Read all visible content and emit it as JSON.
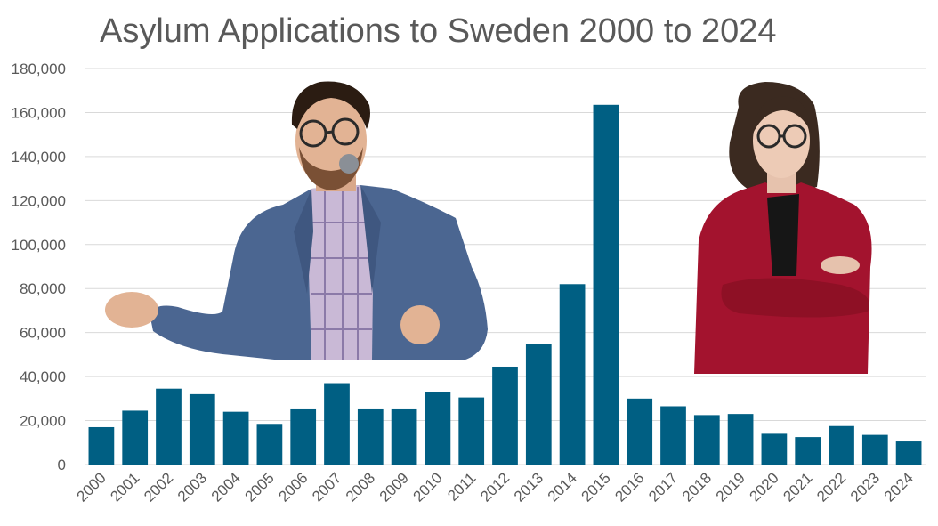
{
  "chart_data": {
    "type": "bar",
    "title": "Asylum Applications to Sweden 2000 to 2024",
    "xlabel": "",
    "ylabel": "",
    "ylim": [
      0,
      180000
    ],
    "yticks": [
      "0",
      "20,000",
      "40,000",
      "60,000",
      "80,000",
      "100,000",
      "120,000",
      "140,000",
      "160,000",
      "180,000"
    ],
    "ytick_values": [
      0,
      20000,
      40000,
      60000,
      80000,
      100000,
      120000,
      140000,
      160000,
      180000
    ],
    "grid": true,
    "legend": "none",
    "bar_color": "#005f83",
    "categories": [
      "2000",
      "2001",
      "2002",
      "2003",
      "2004",
      "2005",
      "2006",
      "2007",
      "2008",
      "2009",
      "2010",
      "2011",
      "2012",
      "2013",
      "2014",
      "2015",
      "2016",
      "2017",
      "2018",
      "2019",
      "2020",
      "2021",
      "2022",
      "2023",
      "2024"
    ],
    "values": [
      17000,
      24500,
      34500,
      32000,
      24000,
      18500,
      25500,
      37000,
      25500,
      25500,
      33000,
      30500,
      44500,
      55000,
      82000,
      163500,
      30000,
      26500,
      22500,
      23000,
      14000,
      12500,
      17500,
      13500,
      10500
    ]
  },
  "photos": {
    "left": "man-in-blue-suit-photo",
    "right": "woman-in-red-blazer-photo"
  }
}
